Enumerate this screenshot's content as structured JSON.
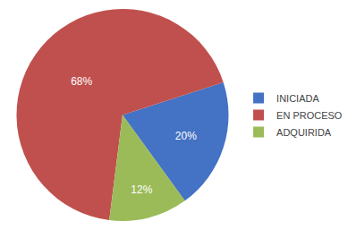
{
  "chart_data": {
    "type": "pie",
    "categories": [
      "INICIADA",
      "EN PROCESO",
      "ADQUIRIDA"
    ],
    "values": [
      20,
      68,
      12
    ],
    "value_labels": [
      "20%",
      "68%",
      "12%"
    ],
    "colors": [
      "#4472C4",
      "#C0504D",
      "#9BBB59"
    ],
    "data_labels": true,
    "legend": "right"
  }
}
